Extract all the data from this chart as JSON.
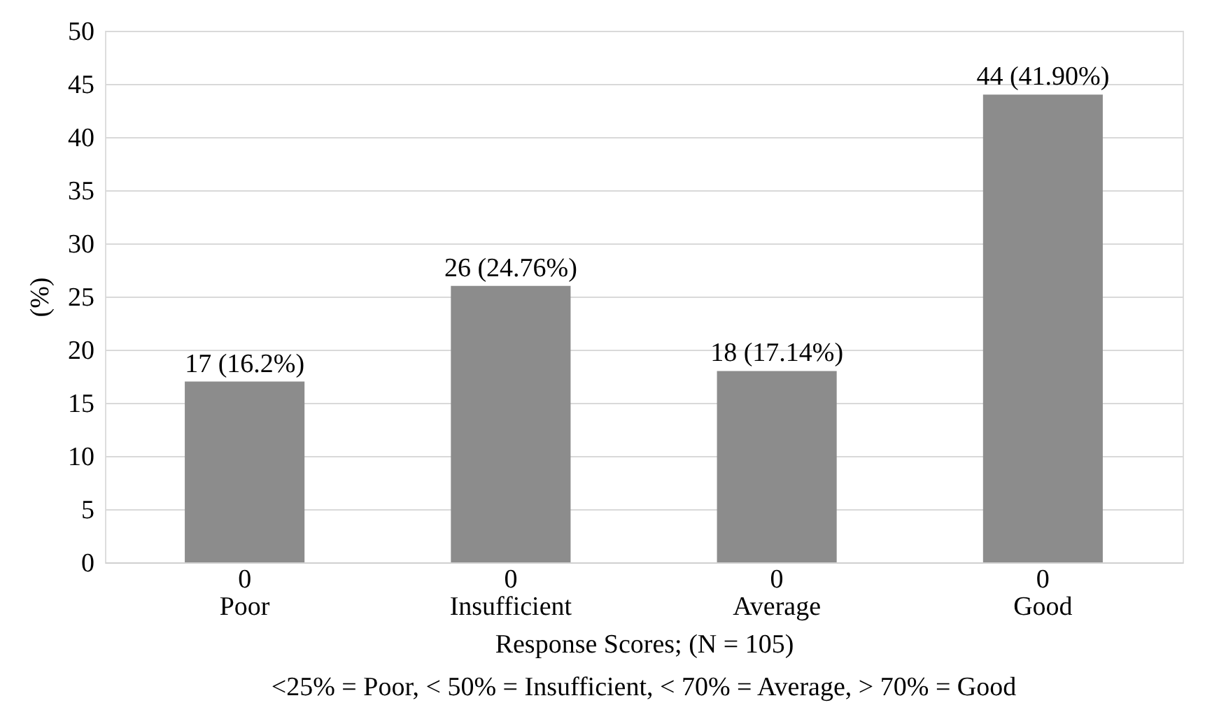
{
  "chart_data": {
    "type": "bar",
    "xlabel": "Response Scores; (N = 105)",
    "ylabel": "(%)",
    "categories": [
      "Poor",
      "Insufficient",
      "Average",
      "Good"
    ],
    "values": [
      17,
      26,
      18,
      44
    ],
    "value_labels": [
      "17 (16.2%)",
      "26 (24.76%)",
      "18 (17.14%)",
      "44 (41.90%)"
    ],
    "color": "#8c8c8c",
    "ylim": [
      0,
      50
    ],
    "yticks": [
      0,
      5,
      10,
      15,
      20,
      25,
      30,
      35,
      40,
      45,
      50
    ],
    "grid": "y",
    "annotations": [
      {
        "text": "0",
        "x": "Poor",
        "y": 0
      },
      {
        "text": "0",
        "x": "Insufficient",
        "y": 0
      },
      {
        "text": "0",
        "x": "Average",
        "y": 0
      },
      {
        "text": "0",
        "x": "Good",
        "y": 0
      },
      "<25% = Poor, < 50% = Insufficient, < 70% = Average, > 70% = Good"
    ]
  }
}
